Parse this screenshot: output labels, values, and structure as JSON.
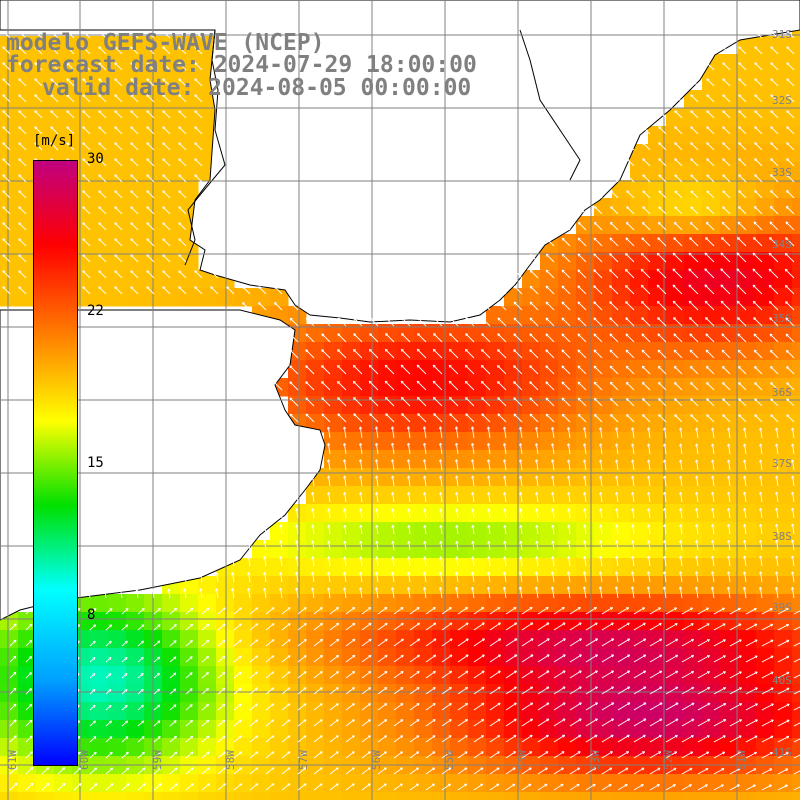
{
  "title": {
    "model": "modelo GEFS-WAVE (NCEP)",
    "forecast": "forecast date: 2024-07-29 18:00:00",
    "valid": "valid date: 2024-08-05 00:00:00"
  },
  "legend": {
    "unit": "[m/s]",
    "ticks": [
      "30",
      "22",
      "15",
      "8"
    ],
    "min": 0,
    "max": 30,
    "colors": [
      "#0000ff",
      "#00a0ff",
      "#00ffff",
      "#00e000",
      "#ffff00",
      "#ff8000",
      "#ff0000",
      "#c00080"
    ]
  },
  "map": {
    "land_color": "#ffffff",
    "grid_color": "#808080",
    "coast_color": "#000000",
    "arrow_color": "#ffffff",
    "lat_labels": [
      "31S",
      "32S",
      "33S",
      "34S",
      "35S",
      "36S",
      "37S",
      "38S",
      "39S",
      "40S",
      "41S"
    ],
    "lon_labels": [
      "61W",
      "60W",
      "59W",
      "58W",
      "57W",
      "56W",
      "55W",
      "54W",
      "53W",
      "52W",
      "51W"
    ],
    "dominant_wind": "south-westerly"
  }
}
